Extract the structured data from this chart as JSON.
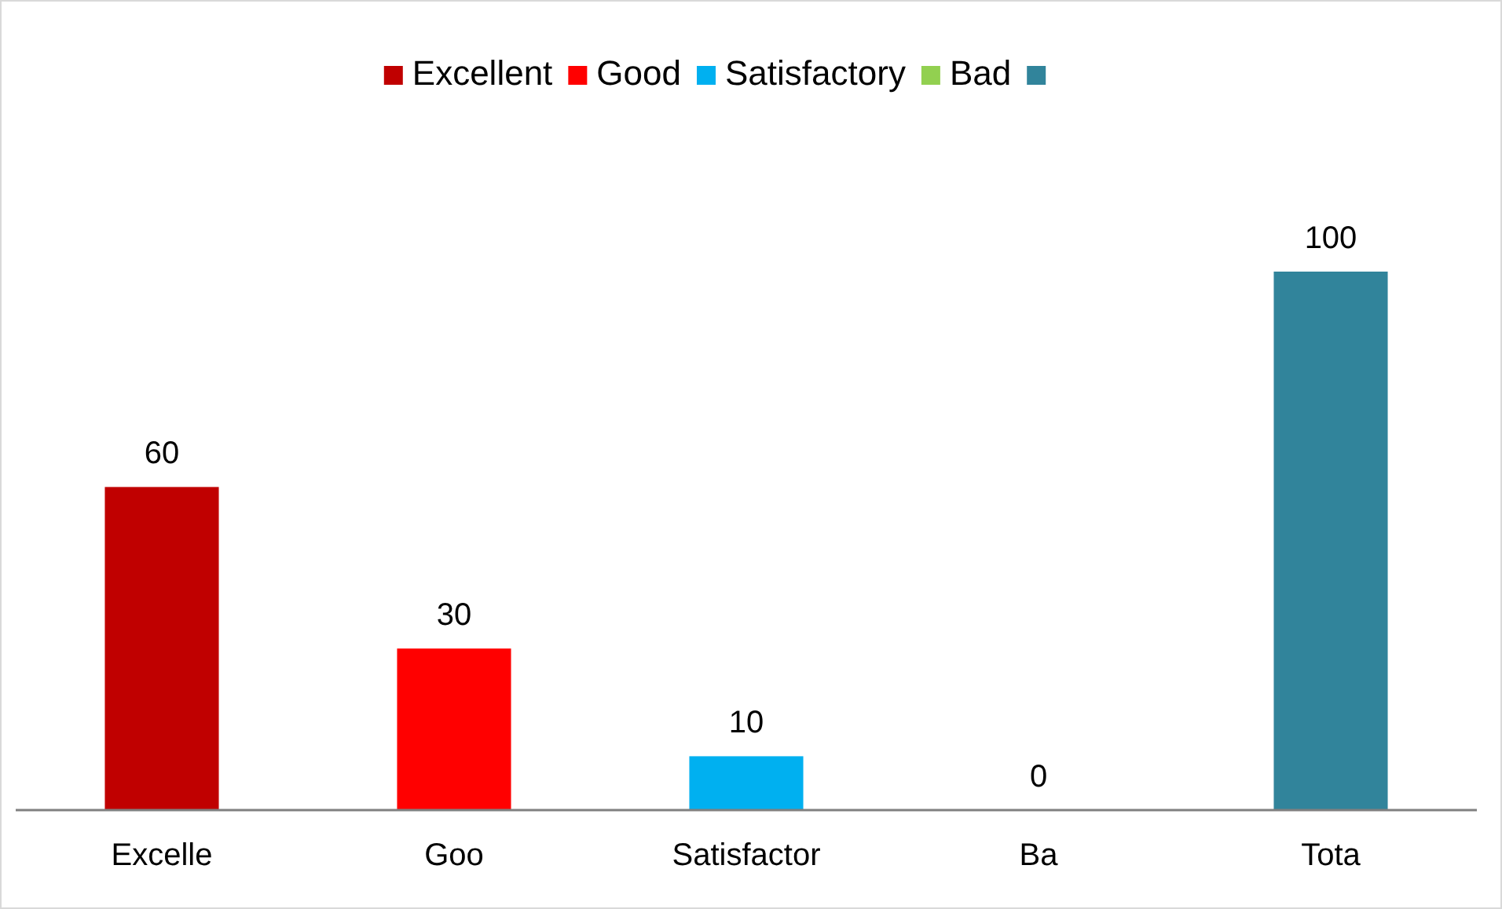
{
  "chart_data": {
    "type": "bar",
    "categories": [
      "Excelle",
      "Goo",
      "Satisfactor",
      "Ba",
      "Tota"
    ],
    "series": [
      {
        "name": "Excellent",
        "color": "#c00000",
        "values": [
          60,
          null,
          null,
          null,
          null
        ]
      },
      {
        "name": "Good",
        "color": "#ff0000",
        "values": [
          null,
          30,
          null,
          null,
          null
        ]
      },
      {
        "name": "Satisfactory",
        "color": "#00b0f0",
        "values": [
          null,
          null,
          10,
          null,
          null
        ]
      },
      {
        "name": "Bad",
        "color": "#92d050",
        "values": [
          null,
          null,
          null,
          0,
          null
        ]
      },
      {
        "color": "#31849b",
        "values": [
          null,
          null,
          null,
          null,
          100
        ]
      }
    ],
    "tick_labels": "x",
    "data_labels": true,
    "legend": "top"
  }
}
